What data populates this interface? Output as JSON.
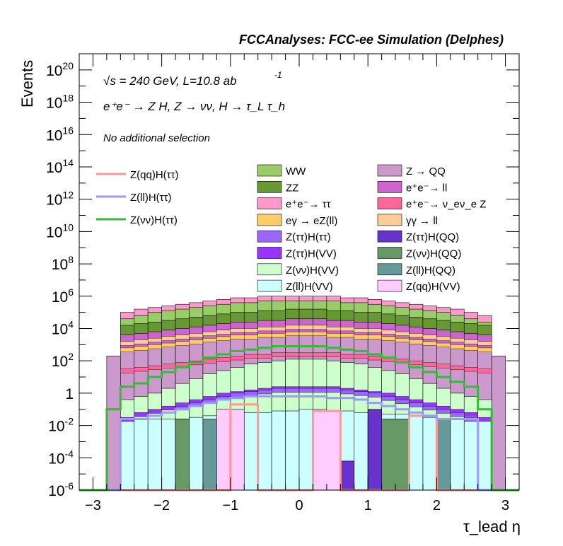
{
  "header": {
    "title": "FCCAnalyses: FCC-ee Simulation (Delphes)"
  },
  "annotations": {
    "energy": "√s = 240 GeV, L=10.8 ab",
    "energy_exponent": "-1",
    "process": "e⁺e⁻ → Z H, Z → νν, H → τ_L τ_h",
    "selection": "No additional selection"
  },
  "chart_data": {
    "type": "histogram",
    "title": "FCCAnalyses: FCC-ee Simulation (Delphes)",
    "xlabel": "τ_lead η",
    "ylabel": "Events",
    "xlim": [
      -3.2,
      3.2
    ],
    "ylim": [
      1e-06,
      1e+21
    ],
    "y_scale": "log",
    "x_ticks": [
      -3,
      -2,
      -1,
      0,
      1,
      2,
      3
    ],
    "x_tick_labels": [
      "−3",
      "−2",
      "−1",
      "0",
      "1",
      "2",
      "3"
    ],
    "y_ticks": [
      {
        "value": 1e-06,
        "base": "10",
        "exp": "-6"
      },
      {
        "value": 0.0001,
        "base": "10",
        "exp": "-4"
      },
      {
        "value": 0.01,
        "base": "10",
        "exp": "-2"
      },
      {
        "value": 1,
        "base": "1",
        "exp": ""
      },
      {
        "value": 100.0,
        "base": "10",
        "exp": "2"
      },
      {
        "value": 10000.0,
        "base": "10",
        "exp": "4"
      },
      {
        "value": 1000000.0,
        "base": "10",
        "exp": "6"
      },
      {
        "value": 100000000.0,
        "base": "10",
        "exp": "8"
      },
      {
        "value": 10000000000.0,
        "base": "10",
        "exp": "10"
      },
      {
        "value": 1000000000000.0,
        "base": "10",
        "exp": "12"
      },
      {
        "value": 100000000000000.0,
        "base": "10",
        "exp": "14"
      },
      {
        "value": 1e+16,
        "base": "10",
        "exp": "16"
      },
      {
        "value": 1e+18,
        "base": "10",
        "exp": "18"
      },
      {
        "value": 1e+20,
        "base": "10",
        "exp": "20"
      }
    ],
    "bin_edges": [
      -3.2,
      -3.0,
      -2.8,
      -2.6,
      -2.4,
      -2.2,
      -2.0,
      -1.8,
      -1.6,
      -1.4,
      -1.2,
      -1.0,
      -0.8,
      -0.6,
      -0.4,
      -0.2,
      0.0,
      0.2,
      0.4,
      0.6,
      0.8,
      1.0,
      1.2,
      1.4,
      1.6,
      1.8,
      2.0,
      2.2,
      2.4,
      2.6,
      2.8,
      3.0,
      3.2
    ],
    "stack_boundaries_log10": [
      {
        "name": "Z(ll)H(VV) top",
        "values": [
          -6,
          -6,
          -6,
          -1.6,
          -1.6,
          -1.6,
          -1.6,
          -1.6,
          -1.5,
          -1.4,
          -1.3,
          -1.3,
          -1.2,
          -1.2,
          -1.1,
          -1.1,
          -1.0,
          -1.0,
          -1.1,
          -1.1,
          -1.2,
          -1.2,
          -1.3,
          -1.3,
          -1.4,
          -1.5,
          -1.6,
          -1.6,
          -1.6,
          -1.6,
          -6,
          -6
        ]
      },
      {
        "name": "Z(νν)H(VV) top",
        "values": [
          -6,
          -6,
          -6,
          -0.4,
          -0.2,
          0.0,
          0.3,
          0.6,
          0.9,
          1.2,
          1.4,
          1.6,
          1.8,
          1.9,
          2.0,
          2.1,
          2.1,
          2.1,
          2.0,
          1.9,
          1.8,
          1.6,
          1.4,
          1.2,
          0.9,
          0.6,
          0.3,
          0.0,
          -0.2,
          -0.4,
          -6,
          -6
        ]
      },
      {
        "name": "Z → QQ top",
        "values": [
          -6,
          -6,
          2.3,
          2.6,
          2.7,
          2.8,
          2.9,
          3.0,
          3.1,
          3.2,
          3.3,
          3.4,
          3.5,
          3.5,
          3.6,
          3.6,
          3.6,
          3.6,
          3.6,
          3.5,
          3.5,
          3.4,
          3.3,
          3.2,
          3.1,
          3.0,
          2.9,
          2.8,
          2.7,
          2.6,
          2.3,
          -6
        ]
      },
      {
        "name": "e⁺e⁻ → ll top",
        "values": [
          -6,
          -6,
          -6,
          3.6,
          3.7,
          3.8,
          3.9,
          4.0,
          4.1,
          4.2,
          4.3,
          4.4,
          4.4,
          4.5,
          4.5,
          4.6,
          4.6,
          4.6,
          4.5,
          4.5,
          4.4,
          4.4,
          4.3,
          4.2,
          4.1,
          4.0,
          3.9,
          3.8,
          3.7,
          3.6,
          -6,
          -6
        ]
      },
      {
        "name": "ZZ top",
        "values": [
          -6,
          -6,
          -6,
          4.2,
          4.3,
          4.4,
          4.5,
          4.6,
          4.7,
          4.8,
          4.9,
          5.0,
          5.0,
          5.1,
          5.1,
          5.2,
          5.2,
          5.2,
          5.1,
          5.1,
          5.0,
          5.0,
          4.9,
          4.8,
          4.7,
          4.6,
          4.5,
          4.4,
          4.3,
          4.2,
          -6,
          -6
        ]
      },
      {
        "name": "WW top",
        "values": [
          -6,
          -6,
          -6,
          4.6,
          4.8,
          5.0,
          5.1,
          5.2,
          5.3,
          5.4,
          5.5,
          5.6,
          5.6,
          5.7,
          5.7,
          5.7,
          5.7,
          5.7,
          5.7,
          5.6,
          5.6,
          5.5,
          5.4,
          5.3,
          5.2,
          5.1,
          5.0,
          4.8,
          4.6,
          4.4,
          -6,
          -6
        ]
      },
      {
        "name": "e⁺e⁻ → ττ top",
        "values": [
          -6,
          -6,
          -6,
          5.0,
          5.2,
          5.3,
          5.4,
          5.5,
          5.6,
          5.7,
          5.8,
          5.9,
          5.9,
          6.0,
          6.0,
          6.0,
          6.0,
          6.0,
          6.0,
          5.9,
          5.9,
          5.8,
          5.7,
          5.6,
          5.5,
          5.4,
          5.3,
          5.2,
          5.0,
          4.8,
          -6,
          -6
        ]
      }
    ],
    "stack_fill_colors": [
      "#ccffff",
      "#ccffcc",
      "#cc99cc",
      "#cc66cc",
      "#669933",
      "#99cc66",
      "#ff99cc"
    ],
    "bands_log10": [
      {
        "name": "e⁺e⁻ → ν_eν_e Z",
        "color": "#ff6699",
        "values": [
          -6,
          -6,
          -6,
          1.5,
          1.6,
          1.7,
          1.8,
          1.9,
          2.0,
          2.1,
          2.2,
          2.3,
          2.4,
          2.4,
          2.5,
          2.5,
          2.5,
          2.5,
          2.5,
          2.4,
          2.4,
          2.3,
          2.2,
          2.1,
          2.0,
          1.9,
          1.8,
          1.7,
          1.6,
          1.5,
          -6,
          -6
        ]
      },
      {
        "name": "eγ → eZ(ll)",
        "color": "#ffcc66",
        "values": [
          -6,
          -6,
          -6,
          2.8,
          2.9,
          3.0,
          3.1,
          3.2,
          3.3,
          3.4,
          3.5,
          3.6,
          3.6,
          3.7,
          3.7,
          3.8,
          3.8,
          3.8,
          3.7,
          3.7,
          3.6,
          3.6,
          3.5,
          3.4,
          3.3,
          3.2,
          3.1,
          3.0,
          2.9,
          2.8,
          -6,
          -6
        ]
      },
      {
        "name": "γγ → ll",
        "color": "#ffcc99",
        "values": [
          -6,
          -6,
          -6,
          3.2,
          3.3,
          3.4,
          3.5,
          3.6,
          3.7,
          3.8,
          3.9,
          4.0,
          4.0,
          4.1,
          4.1,
          4.2,
          4.2,
          4.2,
          4.1,
          4.1,
          4.0,
          4.0,
          3.9,
          3.8,
          3.7,
          3.6,
          3.5,
          3.4,
          3.3,
          3.2,
          -6,
          -6
        ]
      },
      {
        "name": "Z(ττ)H(VV)",
        "color": "#9933ff",
        "values": [
          -6,
          -6,
          -6,
          -1.5,
          -1.2,
          -1.0,
          -0.8,
          -0.6,
          -0.4,
          -0.2,
          0.0,
          0.1,
          0.2,
          0.3,
          0.4,
          0.4,
          0.4,
          0.4,
          0.4,
          0.3,
          0.2,
          0.1,
          0.0,
          -0.2,
          -0.4,
          -0.6,
          -0.8,
          -1.0,
          -1.2,
          -1.5,
          -6,
          -6
        ]
      },
      {
        "name": "Z(ττ)H(ττ)",
        "color": "#9966ff",
        "values": [
          -6,
          -6,
          -6,
          -6,
          -6,
          -6,
          -6,
          -0.8,
          -0.6,
          -0.4,
          -0.2,
          0.0,
          0.1,
          0.2,
          0.3,
          0.3,
          0.3,
          0.3,
          0.3,
          0.2,
          0.1,
          0.0,
          -0.2,
          -0.4,
          -0.6,
          -0.8,
          -1.0,
          -1.2,
          -1.5,
          -6,
          -6,
          -6
        ]
      }
    ],
    "sparse_bars": [
      {
        "name": "Z(νν)H(QQ)",
        "color": "#669966",
        "x0": -1.8,
        "x1": -1.6,
        "log10_top": -1.6
      },
      {
        "name": "Z(νν)H(QQ)",
        "color": "#669966",
        "x0": 1.0,
        "x1": 1.6,
        "log10_top": -1.6
      },
      {
        "name": "Z(ll)H(QQ)",
        "color": "#669999",
        "x0": -1.4,
        "x1": -1.2,
        "log10_top": -1.6
      },
      {
        "name": "Z(ll)H(QQ)",
        "color": "#669999",
        "x0": 2.0,
        "x1": 2.2,
        "log10_top": -1.6
      },
      {
        "name": "Z(qq)H(VV)",
        "color": "#ffccff",
        "x0": -1.2,
        "x1": -0.8,
        "log10_top": -1.0
      },
      {
        "name": "Z(qq)H(VV)",
        "color": "#ffccff",
        "x0": 0.2,
        "x1": 0.6,
        "log10_top": -1.1
      },
      {
        "name": "Z(ττ)H(QQ)",
        "color": "#6633cc",
        "x0": 0.6,
        "x1": 0.8,
        "log10_top": -4.2
      },
      {
        "name": "Z(ττ)H(QQ)",
        "color": "#6633cc",
        "x0": 1.0,
        "x1": 1.2,
        "log10_top": -1.0
      }
    ],
    "signal_lines_log10": [
      {
        "name": "Z(qq)H(ττ)",
        "color": "#ff9999",
        "values": [
          -6,
          -6,
          -6,
          -6,
          -6,
          -6,
          -6,
          -6,
          -6,
          -6,
          -6,
          -0.7,
          -0.7,
          -6,
          -6,
          -6,
          -6,
          -1.1,
          -1.1,
          -6,
          -6,
          -6,
          -6,
          -6,
          -1.4,
          -1.4,
          -6,
          -6,
          -6,
          -6,
          -6,
          -6
        ]
      },
      {
        "name": "Z(ll)H(ττ)",
        "color": "#9999ff",
        "values": [
          -6,
          -6,
          -6,
          -1.6,
          -1.6,
          -1.4,
          -1.2,
          -1.0,
          -0.8,
          -0.6,
          -0.4,
          -0.3,
          -0.2,
          -0.2,
          -0.2,
          -0.2,
          -0.2,
          -0.2,
          -0.3,
          -0.3,
          -0.4,
          -0.6,
          -0.8,
          -1.0,
          -1.2,
          -1.4,
          -1.6,
          -1.6,
          -1.6,
          -6,
          -6,
          -6
        ]
      },
      {
        "name": "Z(νν)H(ττ)",
        "color": "#33bb33",
        "values": [
          -6,
          -6,
          -1.0,
          0.4,
          0.6,
          1.0,
          1.3,
          1.6,
          1.9,
          2.2,
          2.4,
          2.6,
          2.7,
          2.8,
          2.9,
          2.9,
          2.9,
          2.9,
          2.8,
          2.7,
          2.6,
          2.4,
          2.2,
          1.9,
          1.6,
          1.3,
          1.0,
          0.7,
          0.4,
          -1.0,
          -6,
          -6
        ]
      }
    ],
    "legend_left": [
      {
        "label": "Z(qq)H(ττ)",
        "color": "#ff9999"
      },
      {
        "label": "Z(ll)H(ττ)",
        "color": "#9999ff"
      },
      {
        "label": "Z(νν)H(ττ)",
        "color": "#33bb33"
      }
    ],
    "legend_col1": [
      {
        "label": "WW",
        "color": "#99cc66"
      },
      {
        "label": "ZZ",
        "color": "#669933"
      },
      {
        "label": "e⁺e⁻→ ττ",
        "color": "#ff99cc"
      },
      {
        "label": "eγ → eZ(ll)",
        "color": "#ffcc66"
      },
      {
        "label": "Z(ττ)H(ττ)",
        "color": "#9966ff"
      },
      {
        "label": "Z(ττ)H(VV)",
        "color": "#9933ff"
      },
      {
        "label": "Z(νν)H(VV)",
        "color": "#ccffcc"
      },
      {
        "label": "Z(ll)H(VV)",
        "color": "#ccffff"
      }
    ],
    "legend_col2": [
      {
        "label": "Z → QQ",
        "color": "#cc99cc"
      },
      {
        "label": "e⁺e⁻→ ll",
        "color": "#cc66cc"
      },
      {
        "label": "e⁺e⁻→ ν_eν_e Z",
        "color": "#ff6699"
      },
      {
        "label": "γγ → ll",
        "color": "#ffcc99"
      },
      {
        "label": "Z(ττ)H(QQ)",
        "color": "#6633cc"
      },
      {
        "label": "Z(νν)H(QQ)",
        "color": "#669966"
      },
      {
        "label": "Z(ll)H(QQ)",
        "color": "#669999"
      },
      {
        "label": "Z(qq)H(VV)",
        "color": "#ffccff"
      }
    ]
  }
}
